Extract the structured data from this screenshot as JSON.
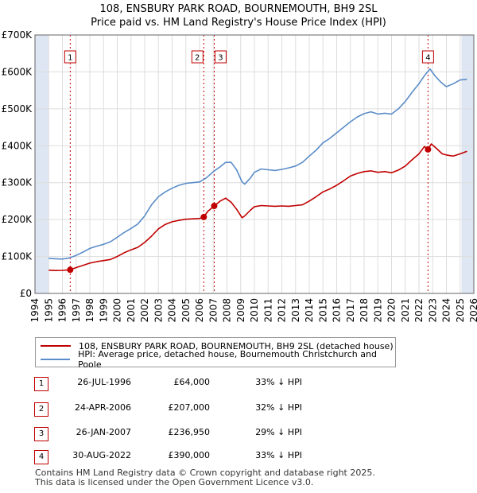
{
  "title": "108, ENSBURY PARK ROAD, BOURNEMOUTH, BH9 2SL",
  "subtitle": "Price paid vs. HM Land Registry's House Price Index (HPI)",
  "colors": {
    "property": "#c00000",
    "hpi": "#5b8cc8",
    "grid": "#dddddd",
    "highlight": "#dde6f2"
  },
  "chart_data": {
    "type": "line",
    "title": "108, ENSBURY PARK ROAD, BOURNEMOUTH, BH9 2SL",
    "subtitle": "Price paid vs. HM Land Registry's House Price Index (HPI)",
    "xlim": [
      1994,
      2026
    ],
    "ylim": [
      0,
      700000
    ],
    "y_ticks": [
      0,
      100000,
      200000,
      300000,
      400000,
      500000,
      600000,
      700000
    ],
    "y_tick_labels": [
      "£0",
      "£100K",
      "£200K",
      "£300K",
      "£400K",
      "£500K",
      "£600K",
      "£700K"
    ],
    "x_ticks": [
      1994,
      1995,
      1996,
      1997,
      1998,
      1999,
      2000,
      2001,
      2002,
      2003,
      2004,
      2005,
      2006,
      2007,
      2008,
      2009,
      2010,
      2011,
      2012,
      2013,
      2014,
      2015,
      2016,
      2017,
      2018,
      2019,
      2020,
      2021,
      2022,
      2023,
      2024,
      2025,
      2026
    ],
    "grid": true,
    "highlight_periods": [
      [
        1994,
        1995
      ],
      [
        2025.1,
        2026
      ]
    ],
    "series": [
      {
        "name": "108, ENSBURY PARK ROAD, BOURNEMOUTH, BH9 2SL (detached house)",
        "x": [
          1995,
          1995.5,
          1996,
          1996.57,
          1997,
          1997.5,
          1998,
          1998.5,
          1999,
          1999.5,
          2000,
          2000.5,
          2001,
          2001.5,
          2002,
          2002.5,
          2003,
          2003.5,
          2004,
          2004.5,
          2005,
          2005.5,
          2006,
          2006.31,
          2006.6,
          2007.07,
          2007.5,
          2007.9,
          2008.3,
          2008.7,
          2009.1,
          2009.3,
          2009.7,
          2010,
          2010.5,
          2011,
          2011.5,
          2012,
          2012.5,
          2013,
          2013.5,
          2014,
          2014.5,
          2015,
          2015.5,
          2016,
          2016.5,
          2017,
          2017.5,
          2018,
          2018.5,
          2019,
          2019.5,
          2020,
          2020.5,
          2021,
          2021.5,
          2022,
          2022.4,
          2022.66,
          2022.9,
          2023.3,
          2023.7,
          2024,
          2024.5,
          2025,
          2025.5
        ],
        "values": [
          63000,
          62000,
          62500,
          64000,
          70000,
          76000,
          82000,
          86000,
          89000,
          92000,
          100000,
          110000,
          118000,
          125000,
          138000,
          155000,
          175000,
          187000,
          194000,
          198000,
          201000,
          202000,
          203000,
          207000,
          222000,
          236950,
          250000,
          258000,
          247000,
          228000,
          205000,
          210000,
          225000,
          235000,
          238000,
          237000,
          236000,
          237000,
          236000,
          238000,
          240000,
          250000,
          262000,
          275000,
          283000,
          293000,
          305000,
          318000,
          325000,
          330000,
          332000,
          328000,
          330000,
          327000,
          334000,
          345000,
          362000,
          378000,
          398000,
          390000,
          405000,
          392000,
          378000,
          375000,
          372000,
          378000,
          385000
        ]
      },
      {
        "name": "HPI: Average price, detached house, Bournemouth Christchurch and Poole",
        "x": [
          1995,
          1995.5,
          1996,
          1996.5,
          1997,
          1997.5,
          1998,
          1998.5,
          1999,
          1999.5,
          2000,
          2000.5,
          2001,
          2001.5,
          2002,
          2002.5,
          2003,
          2003.5,
          2004,
          2004.5,
          2005,
          2005.5,
          2006,
          2006.5,
          2007,
          2007.5,
          2007.9,
          2008.3,
          2008.7,
          2009.1,
          2009.3,
          2009.7,
          2010,
          2010.5,
          2011,
          2011.5,
          2012,
          2012.5,
          2013,
          2013.5,
          2014,
          2014.5,
          2015,
          2015.5,
          2016,
          2016.5,
          2017,
          2017.5,
          2018,
          2018.5,
          2019,
          2019.5,
          2020,
          2020.5,
          2021,
          2021.5,
          2022,
          2022.4,
          2022.8,
          2023.2,
          2023.6,
          2024,
          2024.5,
          2025,
          2025.5
        ],
        "values": [
          95000,
          94000,
          93000,
          96000,
          103000,
          112000,
          122000,
          128000,
          133000,
          140000,
          152000,
          165000,
          176000,
          188000,
          210000,
          240000,
          262000,
          275000,
          285000,
          293000,
          298000,
          300000,
          302000,
          313000,
          330000,
          343000,
          355000,
          355000,
          335000,
          302000,
          296000,
          312000,
          328000,
          337000,
          335000,
          333000,
          336000,
          340000,
          345000,
          355000,
          372000,
          388000,
          408000,
          420000,
          435000,
          450000,
          465000,
          478000,
          487000,
          492000,
          486000,
          488000,
          486000,
          500000,
          520000,
          545000,
          568000,
          590000,
          608000,
          588000,
          572000,
          560000,
          568000,
          578000,
          580000
        ]
      }
    ],
    "sale_markers": [
      {
        "label": "1",
        "x": 1996.57,
        "value": 64000
      },
      {
        "label": "2",
        "x": 2006.31,
        "value": 207000
      },
      {
        "label": "3",
        "x": 2007.07,
        "value": 236950
      },
      {
        "label": "4",
        "x": 2022.66,
        "value": 390000
      }
    ]
  },
  "legend": {
    "property_label": "108, ENSBURY PARK ROAD, BOURNEMOUTH, BH9 2SL (detached house)",
    "hpi_label": "HPI: Average price, detached house, Bournemouth Christchurch and Poole"
  },
  "sales": [
    {
      "num": "1",
      "date": "26-JUL-1996",
      "price": "£64,000",
      "hpi": "33% ↓ HPI"
    },
    {
      "num": "2",
      "date": "24-APR-2006",
      "price": "£207,000",
      "hpi": "32% ↓ HPI"
    },
    {
      "num": "3",
      "date": "26-JAN-2007",
      "price": "£236,950",
      "hpi": "29% ↓ HPI"
    },
    {
      "num": "4",
      "date": "30-AUG-2022",
      "price": "£390,000",
      "hpi": "33% ↓ HPI"
    }
  ],
  "footer": {
    "line1": "Contains HM Land Registry data © Crown copyright and database right 2025.",
    "line2": "This data is licensed under the Open Government Licence v3.0."
  }
}
